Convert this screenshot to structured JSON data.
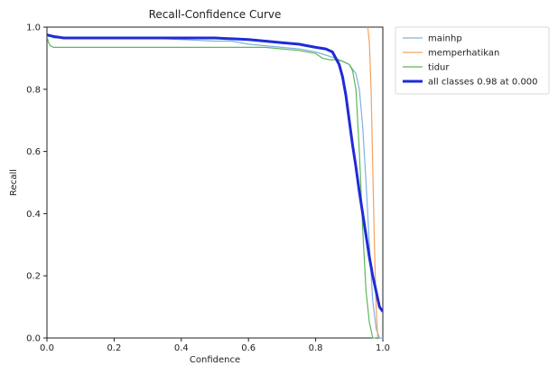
{
  "chart_data": {
    "type": "line",
    "title": "Recall-Confidence Curve",
    "xlabel": "Confidence",
    "ylabel": "Recall",
    "xlim": [
      0.0,
      1.0
    ],
    "ylim": [
      0.0,
      1.0
    ],
    "xticks": [
      "0.0",
      "0.2",
      "0.4",
      "0.6",
      "0.8",
      "1.0"
    ],
    "yticks": [
      "0.0",
      "0.2",
      "0.4",
      "0.6",
      "0.8",
      "1.0"
    ],
    "grid": false,
    "legend_position": "outside-top-right",
    "series": [
      {
        "name": "mainhp",
        "color": "#7fb2de",
        "width": "thin",
        "x": [
          0.0,
          0.01,
          0.02,
          0.05,
          0.1,
          0.2,
          0.3,
          0.4,
          0.5,
          0.55,
          0.6,
          0.65,
          0.7,
          0.75,
          0.8,
          0.83,
          0.86,
          0.88,
          0.9,
          0.92,
          0.93,
          0.94,
          0.95,
          0.96,
          0.97,
          0.98,
          0.99,
          1.0
        ],
        "y": [
          0.97,
          0.97,
          0.965,
          0.965,
          0.965,
          0.965,
          0.965,
          0.96,
          0.955,
          0.955,
          0.945,
          0.94,
          0.935,
          0.93,
          0.92,
          0.91,
          0.9,
          0.89,
          0.88,
          0.85,
          0.8,
          0.68,
          0.5,
          0.3,
          0.12,
          0.03,
          0.0,
          0.0
        ]
      },
      {
        "name": "memperhatikan",
        "color": "#f5a25d",
        "width": "thin",
        "x": [
          0.955,
          0.96,
          0.965,
          0.97,
          0.975,
          0.98,
          0.985
        ],
        "y": [
          1.0,
          0.95,
          0.8,
          0.55,
          0.3,
          0.1,
          0.0
        ]
      },
      {
        "name": "tidur",
        "color": "#5db85d",
        "width": "thin",
        "x": [
          0.0,
          0.005,
          0.01,
          0.02,
          0.05,
          0.1,
          0.2,
          0.3,
          0.4,
          0.5,
          0.6,
          0.65,
          0.7,
          0.75,
          0.8,
          0.82,
          0.84,
          0.86,
          0.88,
          0.9,
          0.91,
          0.92,
          0.93,
          0.94,
          0.95,
          0.96,
          0.97,
          0.98
        ],
        "y": [
          0.97,
          0.95,
          0.94,
          0.935,
          0.935,
          0.935,
          0.935,
          0.935,
          0.935,
          0.935,
          0.935,
          0.935,
          0.93,
          0.925,
          0.915,
          0.9,
          0.895,
          0.895,
          0.89,
          0.88,
          0.86,
          0.8,
          0.6,
          0.35,
          0.15,
          0.05,
          0.0,
          0.0
        ]
      },
      {
        "name": "all classes 0.98 at 0.000",
        "color": "#1f2bd6",
        "width": "thick",
        "x": [
          0.0,
          0.02,
          0.05,
          0.1,
          0.2,
          0.3,
          0.4,
          0.5,
          0.6,
          0.65,
          0.7,
          0.75,
          0.8,
          0.83,
          0.85,
          0.86,
          0.87,
          0.88,
          0.89,
          0.9,
          0.91,
          0.92,
          0.93,
          0.94,
          0.95,
          0.96,
          0.97,
          0.98,
          0.99,
          1.0
        ],
        "y": [
          0.975,
          0.97,
          0.965,
          0.965,
          0.965,
          0.965,
          0.965,
          0.965,
          0.96,
          0.955,
          0.95,
          0.945,
          0.935,
          0.93,
          0.92,
          0.9,
          0.88,
          0.84,
          0.78,
          0.7,
          0.62,
          0.55,
          0.47,
          0.4,
          0.33,
          0.26,
          0.2,
          0.15,
          0.1,
          0.085
        ]
      }
    ]
  }
}
